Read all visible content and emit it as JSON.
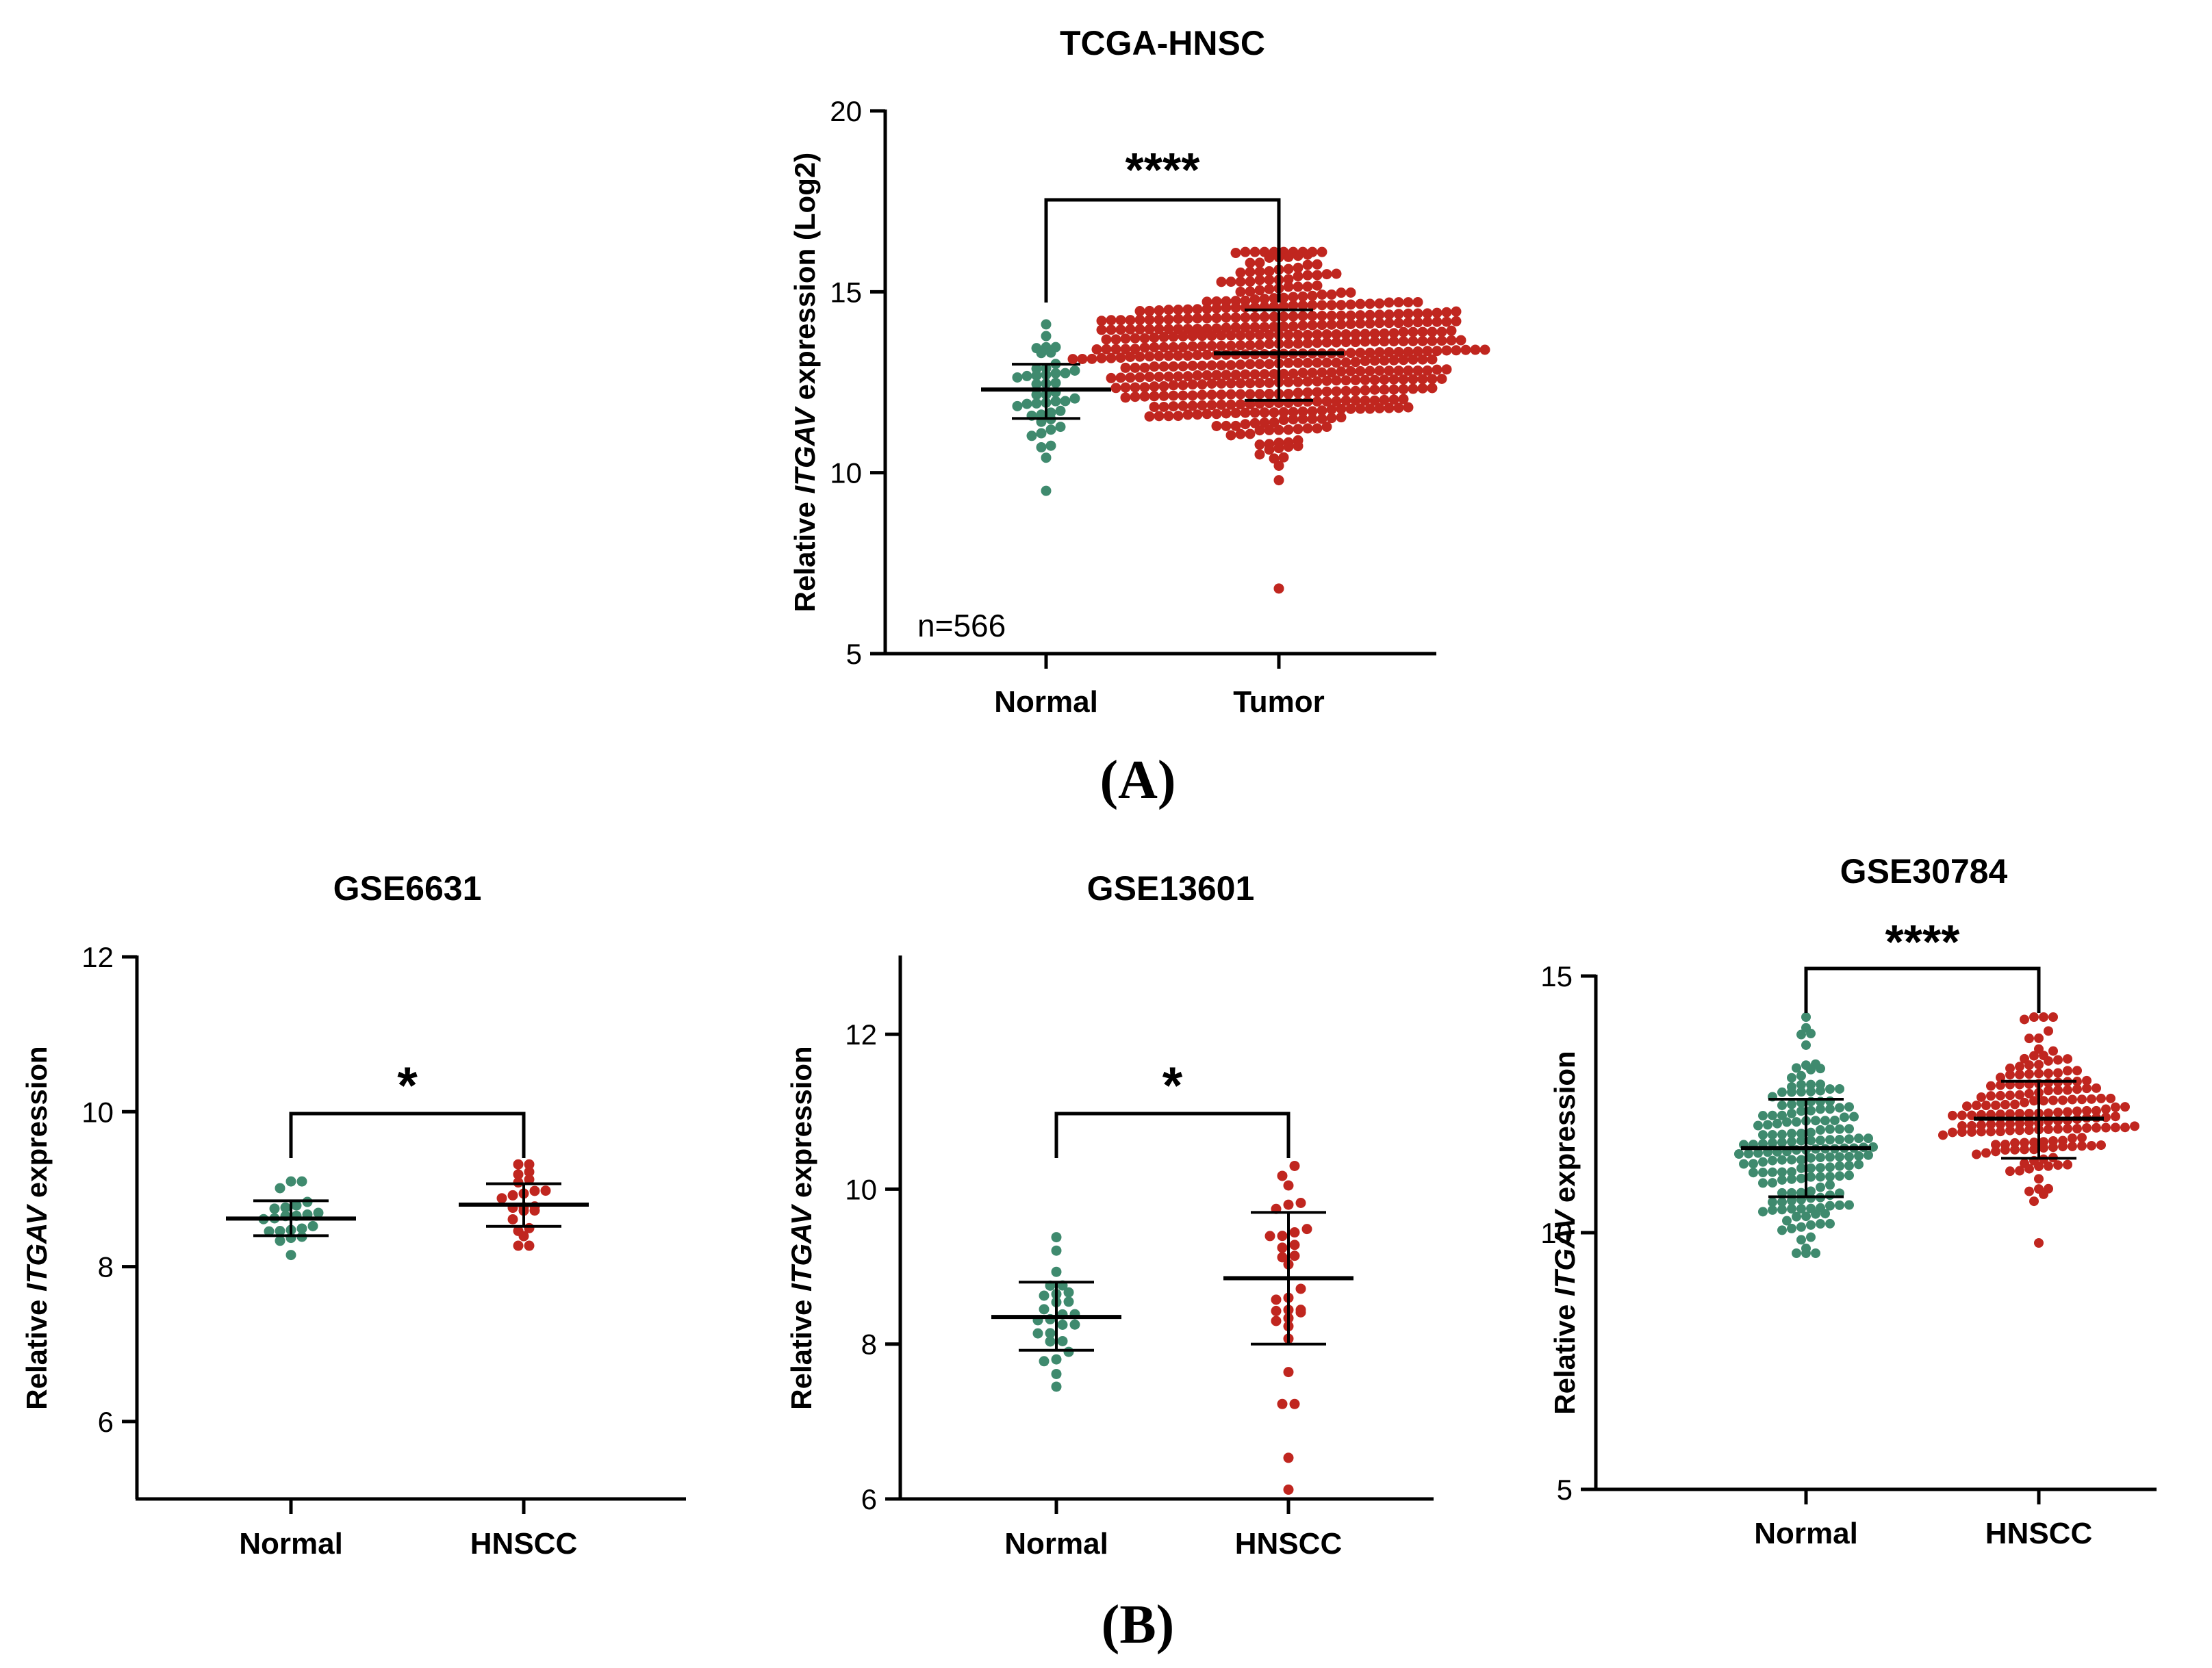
{
  "panels": {
    "A": "A",
    "B": "B"
  },
  "colors": {
    "normal": "#3f8a6e",
    "tumor": "#c0261f",
    "axis": "#000000"
  },
  "chart_data": [
    {
      "id": "tcga",
      "type": "scatter",
      "title": "TCGA-HNSC",
      "ylabel_prefix": "Relative ",
      "ylabel_gene": "ITGAV",
      "ylabel_suffix": " expression (Log2)",
      "ylim": [
        5,
        20
      ],
      "yticks": [
        5,
        10,
        15,
        20
      ],
      "categories": [
        "Normal",
        "Tumor"
      ],
      "annotation": "n=566",
      "significance": "****",
      "groups": [
        {
          "category": "Normal",
          "mean": 12.3,
          "sd_low": 11.5,
          "sd_high": 13.0,
          "n": 44,
          "min": 9.5,
          "max": 14.1
        },
        {
          "category": "Tumor",
          "mean": 13.3,
          "sd_low": 12.0,
          "sd_high": 14.5,
          "n": 522,
          "min": 6.8,
          "max": 16.1
        }
      ]
    },
    {
      "id": "gse6631",
      "type": "scatter",
      "title": "GSE6631",
      "ylabel_prefix": "Relative ",
      "ylabel_gene": "ITGAV",
      "ylabel_suffix": " expression",
      "ylim": [
        5,
        12
      ],
      "yticks": [
        6,
        8,
        10,
        12
      ],
      "categories": [
        "Normal",
        "HNSCC"
      ],
      "significance": "*",
      "groups": [
        {
          "category": "Normal",
          "mean": 8.62,
          "sd_low": 8.4,
          "sd_high": 8.85,
          "n": 22,
          "min": 8.15,
          "max": 9.1
        },
        {
          "category": "HNSCC",
          "mean": 8.8,
          "sd_low": 8.52,
          "sd_high": 9.07,
          "n": 22,
          "min": 8.27,
          "max": 9.32
        }
      ]
    },
    {
      "id": "gse13601",
      "type": "scatter",
      "title": "GSE13601",
      "ylabel_prefix": "Relative ",
      "ylabel_gene": "ITGAV",
      "ylabel_suffix": " expression",
      "ylim": [
        6,
        13
      ],
      "yticks": [
        6,
        8,
        10,
        12
      ],
      "categories": [
        "Normal",
        "HNSCC"
      ],
      "significance": "*",
      "groups": [
        {
          "category": "Normal",
          "mean": 8.35,
          "sd_low": 7.92,
          "sd_high": 8.8,
          "n": 26,
          "min": 7.45,
          "max": 9.38
        },
        {
          "category": "HNSCC",
          "mean": 8.85,
          "sd_low": 8.0,
          "sd_high": 9.7,
          "n": 31,
          "min": 6.12,
          "max": 10.3
        }
      ]
    },
    {
      "id": "gse30784",
      "type": "scatter",
      "title": "GSE30784",
      "ylabel_prefix": "Relative ",
      "ylabel_gene": "ITGAV",
      "ylabel_suffix": " expression",
      "ylim": [
        5,
        15
      ],
      "yticks": [
        5,
        10,
        15
      ],
      "categories": [
        "Normal",
        "HNSCC"
      ],
      "significance": "****",
      "groups": [
        {
          "category": "Normal",
          "mean": 11.65,
          "sd_low": 10.7,
          "sd_high": 12.6,
          "n": 167,
          "min": 9.6,
          "max": 14.2
        },
        {
          "category": "HNSCC",
          "mean": 12.22,
          "sd_low": 11.45,
          "sd_high": 12.95,
          "n": 167,
          "min": 9.8,
          "max": 14.2
        }
      ]
    }
  ]
}
